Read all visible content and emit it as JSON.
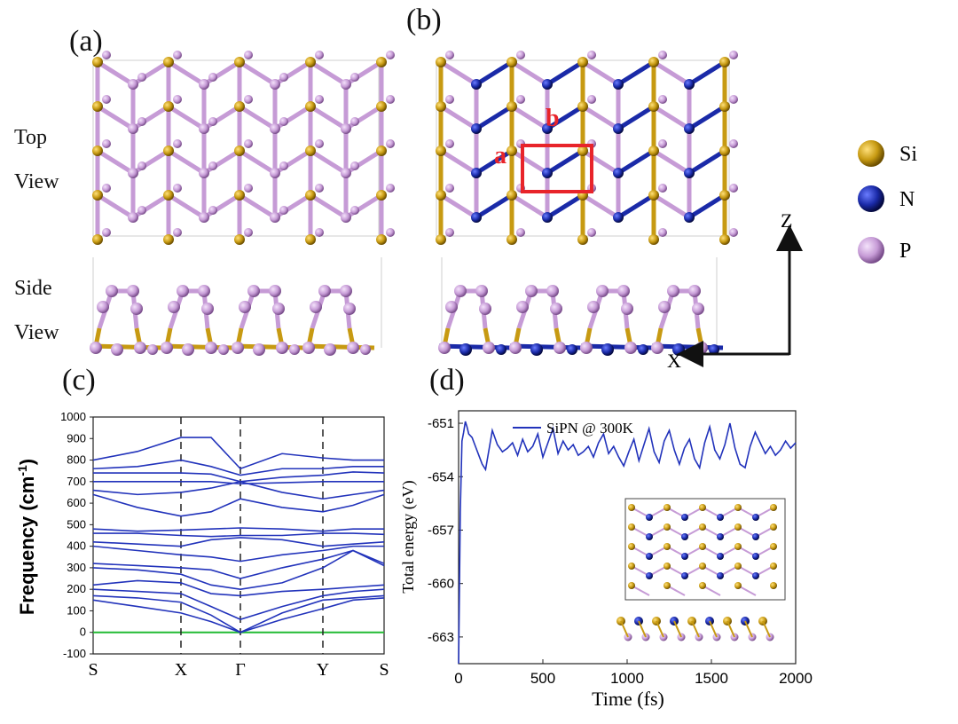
{
  "panels": {
    "a": "(a)",
    "b": "(b)",
    "c": "(c)",
    "d": "(d)"
  },
  "view_labels": {
    "top_1": "Top",
    "top_2": "View",
    "side_1": "Side",
    "side_2": "View"
  },
  "lattice_labels": {
    "a": "a",
    "b": "b"
  },
  "axes_arrows": {
    "z": "Z",
    "x": "X"
  },
  "legend": [
    {
      "label": "Si",
      "color": "#c79a12"
    },
    {
      "label": "N",
      "color": "#1a2aa8"
    },
    {
      "label": "P",
      "color": "#c69bd6"
    }
  ],
  "colors": {
    "si": "#c79a12",
    "n": "#1a2aa8",
    "p": "#c69bd6",
    "band": "#2233bb",
    "zero_line": "#22bb33",
    "cell": "#e8242a"
  },
  "chart_data": [
    {
      "type": "line",
      "panel": "(c)",
      "ylabel": "Frequency (cm",
      "ylabel_sup": "-1",
      "ylabel_end": ")",
      "x_ticks": [
        "S",
        "X",
        "Γ",
        "Y",
        "S"
      ],
      "ylim": [
        -100,
        1000
      ],
      "y_ticks": [
        -100,
        0,
        100,
        200,
        300,
        400,
        500,
        600,
        700,
        800,
        900,
        1000
      ],
      "series": [
        {
          "values": [
            800,
            840,
            905,
            905,
            760,
            830,
            810,
            800,
            800
          ]
        },
        {
          "values": [
            760,
            770,
            800,
            770,
            730,
            760,
            760,
            770,
            770
          ]
        },
        {
          "values": [
            740,
            740,
            740,
            735,
            700,
            720,
            730,
            745,
            740
          ]
        },
        {
          "values": [
            700,
            700,
            700,
            700,
            690,
            695,
            700,
            700,
            700
          ]
        },
        {
          "values": [
            660,
            640,
            650,
            670,
            700,
            650,
            620,
            640,
            660
          ]
        },
        {
          "values": [
            640,
            580,
            540,
            560,
            620,
            580,
            560,
            590,
            640
          ]
        },
        {
          "values": [
            480,
            470,
            475,
            480,
            485,
            480,
            470,
            480,
            480
          ]
        },
        {
          "values": [
            460,
            460,
            450,
            445,
            450,
            450,
            460,
            460,
            455
          ]
        },
        {
          "values": [
            420,
            410,
            400,
            430,
            440,
            430,
            400,
            410,
            420
          ]
        },
        {
          "values": [
            400,
            380,
            360,
            350,
            330,
            360,
            380,
            400,
            400
          ]
        },
        {
          "values": [
            320,
            310,
            300,
            290,
            250,
            300,
            340,
            380,
            320
          ]
        },
        {
          "values": [
            300,
            290,
            270,
            220,
            200,
            230,
            300,
            380,
            310
          ]
        },
        {
          "values": [
            220,
            240,
            230,
            180,
            170,
            190,
            200,
            210,
            220
          ]
        },
        {
          "values": [
            200,
            190,
            180,
            120,
            60,
            120,
            170,
            190,
            200
          ]
        },
        {
          "values": [
            170,
            160,
            140,
            80,
            0,
            90,
            150,
            160,
            170
          ]
        },
        {
          "values": [
            150,
            120,
            90,
            50,
            0,
            60,
            110,
            150,
            160
          ]
        }
      ]
    },
    {
      "type": "line",
      "panel": "(d)",
      "title": "SiPN @ 300K",
      "xlabel": "Time (fs)",
      "ylabel": "Total energy (eV)",
      "xlim": [
        0,
        2000
      ],
      "ylim": [
        -664.5,
        -650.3
      ],
      "x_ticks": [
        0,
        500,
        1000,
        1500,
        2000
      ],
      "y_ticks": [
        -651,
        -654,
        -657,
        -660,
        -663
      ],
      "series": [
        {
          "name": "SiPN @ 300K",
          "x": [
            0,
            10,
            20,
            30,
            40,
            50,
            60,
            80,
            100,
            120,
            140,
            160,
            180,
            200,
            230,
            260,
            290,
            320,
            350,
            380,
            410,
            440,
            470,
            500,
            530,
            560,
            590,
            620,
            650,
            680,
            710,
            740,
            770,
            800,
            830,
            860,
            890,
            920,
            950,
            980,
            1010,
            1040,
            1070,
            1100,
            1130,
            1160,
            1190,
            1220,
            1250,
            1280,
            1310,
            1340,
            1370,
            1400,
            1430,
            1460,
            1490,
            1520,
            1550,
            1580,
            1610,
            1640,
            1670,
            1700,
            1730,
            1760,
            1790,
            1820,
            1850,
            1880,
            1910,
            1940,
            1970,
            2000
          ],
          "values": [
            -664.5,
            -656,
            -652,
            -651.5,
            -650.9,
            -651.2,
            -651.6,
            -651.8,
            -652.3,
            -652.8,
            -653.3,
            -653.6,
            -652.5,
            -651.4,
            -652.2,
            -652.6,
            -652.4,
            -652.1,
            -652.8,
            -651.9,
            -652.6,
            -652.3,
            -651.6,
            -652.9,
            -652.1,
            -651.3,
            -652.7,
            -652.0,
            -652.5,
            -652.2,
            -652.8,
            -652.6,
            -652.3,
            -652.9,
            -652.1,
            -651.6,
            -652.7,
            -652.3,
            -652.9,
            -653.4,
            -652.6,
            -651.9,
            -653.1,
            -652.2,
            -651.3,
            -652.6,
            -653.2,
            -652.0,
            -651.4,
            -652.5,
            -653.3,
            -652.4,
            -651.9,
            -653.0,
            -653.5,
            -652.1,
            -651.2,
            -652.5,
            -653.0,
            -652.2,
            -651.0,
            -652.4,
            -653.3,
            -653.5,
            -652.3,
            -651.5,
            -652.1,
            -652.7,
            -652.3,
            -652.8,
            -652.5,
            -652.0,
            -652.4,
            -652.1
          ]
        }
      ]
    }
  ]
}
